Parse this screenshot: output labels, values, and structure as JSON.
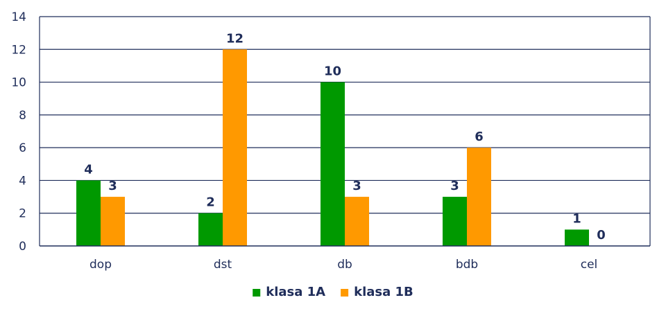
{
  "chart_data": {
    "type": "bar",
    "categories": [
      "dop",
      "dst",
      "db",
      "bdb",
      "cel"
    ],
    "series": [
      {
        "name": "klasa 1A",
        "values": [
          4,
          2,
          10,
          3,
          1
        ],
        "color": "#009900"
      },
      {
        "name": "klasa 1B",
        "values": [
          3,
          12,
          3,
          6,
          0
        ],
        "color": "#ff9900"
      }
    ],
    "yticks": [
      0,
      2,
      4,
      6,
      8,
      10,
      12,
      14
    ],
    "ylim": [
      0,
      14
    ],
    "grid": true,
    "legend_position": "bottom",
    "axis_color": "#1f2d5a",
    "label_color": "#1f2d5a"
  }
}
